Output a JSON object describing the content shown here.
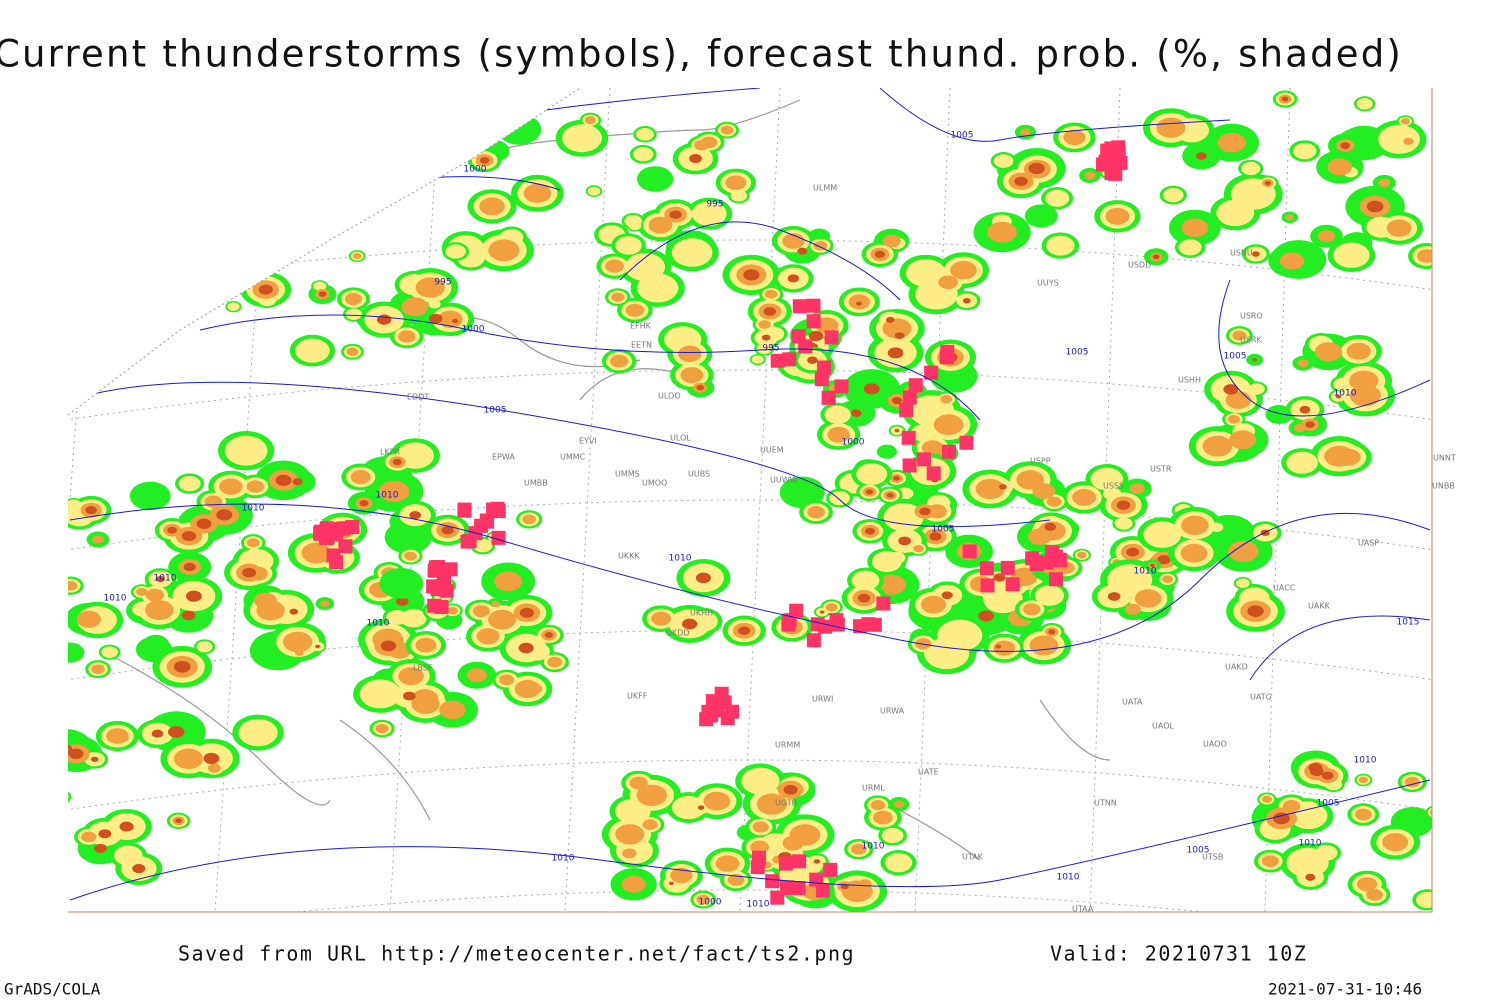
{
  "title": "Current thunderstorms (symbols), forecast thund. prob. (%, shaded)",
  "footer": {
    "source": "Saved from URL http://meteocenter.net/fact/ts2.png",
    "valid": "Valid: 20210731 10Z",
    "software": "GrADS/COLA",
    "timestamp": "2021-07-31-10:46"
  },
  "isobar_labels": [
    1005,
    1000,
    995,
    995,
    1000,
    995,
    1005,
    1000,
    1005,
    1005,
    1010,
    1010,
    1010,
    1010,
    1010,
    1005,
    1010,
    1010,
    1015,
    1010,
    1005,
    1010,
    1010,
    1005,
    1000,
    1010,
    1010,
    1010,
    1010
  ],
  "stations": [
    "ULMM",
    "UUYS",
    "USDD",
    "USNU",
    "USRO",
    "USRK",
    "USHH",
    "EFHK",
    "EETN",
    "ULOO",
    "ULOL",
    "EYVI",
    "UMMC",
    "EPWA",
    "UMBB",
    "UMMS",
    "UMOO",
    "UUBS",
    "UUEM",
    "UUWW",
    "USPP",
    "USTR",
    "USSS",
    "UNNT",
    "UNBB",
    "UASP",
    "UACC",
    "UAKK",
    "UAKD",
    "UATG",
    "UATA",
    "UAOL",
    "UAOO",
    "UATE",
    "UTNN",
    "UTAK",
    "UTAA",
    "UTSB",
    "UKKK",
    "UKFF",
    "UKHH",
    "UKDD",
    "URWI",
    "URWA",
    "URMM",
    "URML",
    "UGTB",
    "EDDT",
    "LKPR",
    "LBSF"
  ]
}
